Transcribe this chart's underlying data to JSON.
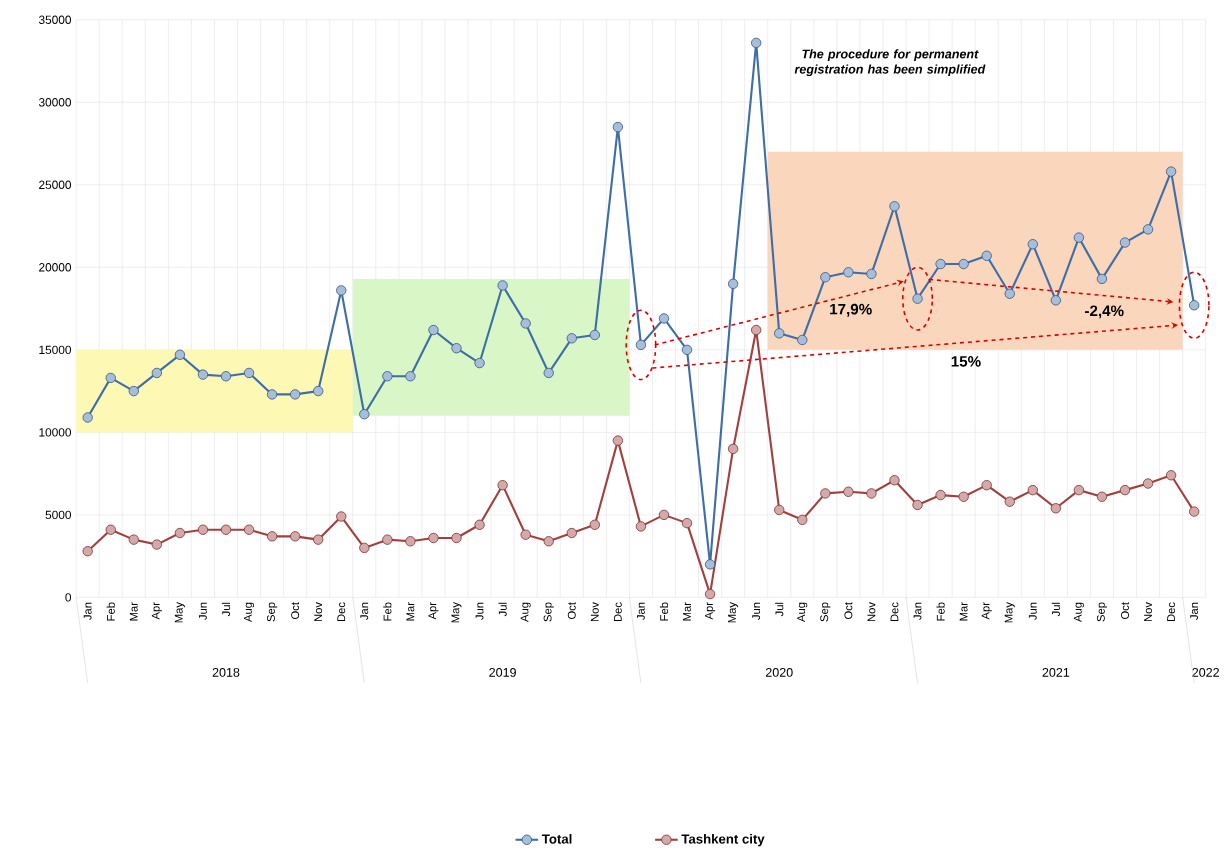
{
  "chart_data": {
    "type": "line",
    "categories": [
      "Jan",
      "Feb",
      "Mar",
      "Apr",
      "May",
      "Jun",
      "Jul",
      "Aug",
      "Sep",
      "Oct",
      "Nov",
      "Dec",
      "Jan",
      "Feb",
      "Mar",
      "Apr",
      "May",
      "Jun",
      "Jul",
      "Aug",
      "Sep",
      "Oct",
      "Nov",
      "Dec",
      "Jan",
      "Feb",
      "Mar",
      "Apr",
      "May",
      "Jun",
      "Jul",
      "Aug",
      "Sep",
      "Oct",
      "Nov",
      "Dec",
      "Jan",
      "Feb",
      "Mar",
      "Apr",
      "May",
      "Jun",
      "Jul",
      "Aug",
      "Sep",
      "Oct",
      "Nov",
      "Dec",
      "Jan"
    ],
    "series": [
      {
        "name": "Total",
        "color": "#3e6ea8",
        "values": [
          10900,
          13300,
          12500,
          13600,
          14700,
          13500,
          13400,
          13600,
          12300,
          12300,
          12500,
          18600,
          11100,
          13400,
          13400,
          16200,
          15100,
          14200,
          18900,
          16600,
          13600,
          15700,
          15900,
          28500,
          15300,
          16900,
          15000,
          2000,
          19000,
          33600,
          16000,
          15600,
          19400,
          19700,
          19600,
          23700,
          18100,
          20200,
          20200,
          20700,
          18400,
          21400,
          18000,
          21800,
          19300,
          21500,
          22300,
          25800,
          17700
        ]
      },
      {
        "name": "Tashkent city",
        "color": "#a0403f",
        "values": [
          2800,
          4100,
          3500,
          3200,
          3900,
          4100,
          4100,
          4100,
          3700,
          3700,
          3500,
          4900,
          3000,
          3500,
          3400,
          3600,
          3600,
          4400,
          6800,
          3800,
          3400,
          3900,
          4400,
          9500,
          4300,
          5000,
          4500,
          200,
          9000,
          16200,
          5300,
          4700,
          6300,
          6400,
          6300,
          7100,
          5600,
          6200,
          6100,
          6800,
          5800,
          6500,
          5400,
          6500,
          6100,
          6500,
          6900,
          7400,
          5200
        ]
      }
    ],
    "ylim": [
      0,
      35000
    ],
    "yticks": [
      0,
      5000,
      10000,
      15000,
      20000,
      25000,
      30000,
      35000
    ],
    "bands": [
      {
        "axis": "y",
        "from": 10000,
        "to": 15000,
        "color": "#fdf8b4"
      },
      {
        "axis": "y",
        "from": 11000,
        "to": 19300,
        "color": "#d8f6c6"
      },
      {
        "axis": "y",
        "from": 15000,
        "to": 27000,
        "color": "#fad6bc"
      }
    ],
    "annotations": [
      "The procedure for permanent registration has been simplified",
      "17,9%",
      "-2,4%",
      "15%",
      "2018",
      "2019",
      "2020",
      "2021",
      "2022"
    ],
    "grid": true,
    "legend": "bottom",
    "marker": "circle",
    "line_style": "solid"
  }
}
